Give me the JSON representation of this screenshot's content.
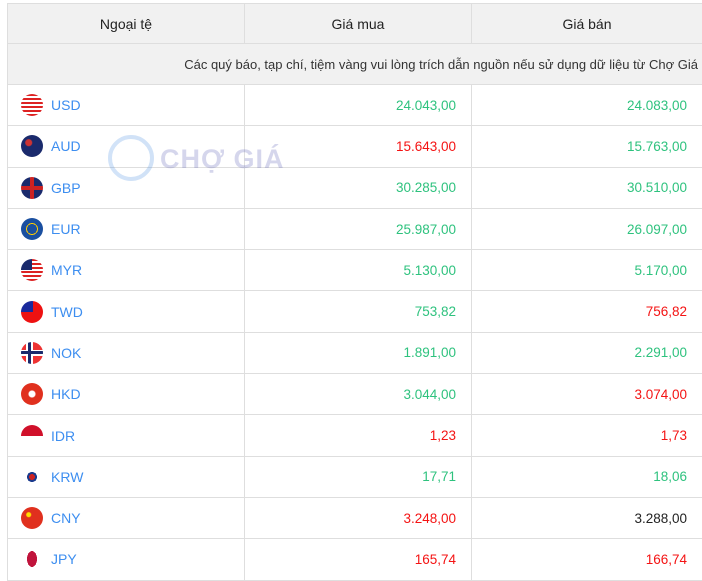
{
  "header": {
    "currency": "Ngoại tệ",
    "buy": "Giá mua",
    "sell": "Giá bán"
  },
  "notice": "Các quý báo, tạp chí, tiệm vàng vui lòng trích dẫn nguồn nếu sử dụng dữ liệu từ Chợ Giá",
  "watermark": "CHỢ GIÁ",
  "colors": {
    "up": "#2ec27e",
    "down": "#f41313",
    "neutral": "#222222",
    "link": "#3d8ef0"
  },
  "rows": [
    {
      "code": "USD",
      "buy": "24.043,00",
      "buy_trend": "up",
      "sell": "24.083,00",
      "sell_trend": "up",
      "flag": "us-flag"
    },
    {
      "code": "AUD",
      "buy": "15.643,00",
      "buy_trend": "down",
      "sell": "15.763,00",
      "sell_trend": "up",
      "flag": "au-flag"
    },
    {
      "code": "GBP",
      "buy": "30.285,00",
      "buy_trend": "up",
      "sell": "30.510,00",
      "sell_trend": "up",
      "flag": "gb-flag"
    },
    {
      "code": "EUR",
      "buy": "25.987,00",
      "buy_trend": "up",
      "sell": "26.097,00",
      "sell_trend": "up",
      "flag": "eu-flag"
    },
    {
      "code": "MYR",
      "buy": "5.130,00",
      "buy_trend": "up",
      "sell": "5.170,00",
      "sell_trend": "up",
      "flag": "my-flag"
    },
    {
      "code": "TWD",
      "buy": "753,82",
      "buy_trend": "up",
      "sell": "756,82",
      "sell_trend": "down",
      "flag": "tw-flag"
    },
    {
      "code": "NOK",
      "buy": "1.891,00",
      "buy_trend": "up",
      "sell": "2.291,00",
      "sell_trend": "up",
      "flag": "no-flag"
    },
    {
      "code": "HKD",
      "buy": "3.044,00",
      "buy_trend": "up",
      "sell": "3.074,00",
      "sell_trend": "down",
      "flag": "hk-flag"
    },
    {
      "code": "IDR",
      "buy": "1,23",
      "buy_trend": "down",
      "sell": "1,73",
      "sell_trend": "down",
      "flag": "id-flag"
    },
    {
      "code": "KRW",
      "buy": "17,71",
      "buy_trend": "up",
      "sell": "18,06",
      "sell_trend": "up",
      "flag": "kr-flag"
    },
    {
      "code": "CNY",
      "buy": "3.248,00",
      "buy_trend": "down",
      "sell": "3.288,00",
      "sell_trend": "neutral",
      "flag": "cn-flag"
    },
    {
      "code": "JPY",
      "buy": "165,74",
      "buy_trend": "down",
      "sell": "166,74",
      "sell_trend": "down",
      "flag": "jp-flag"
    }
  ]
}
